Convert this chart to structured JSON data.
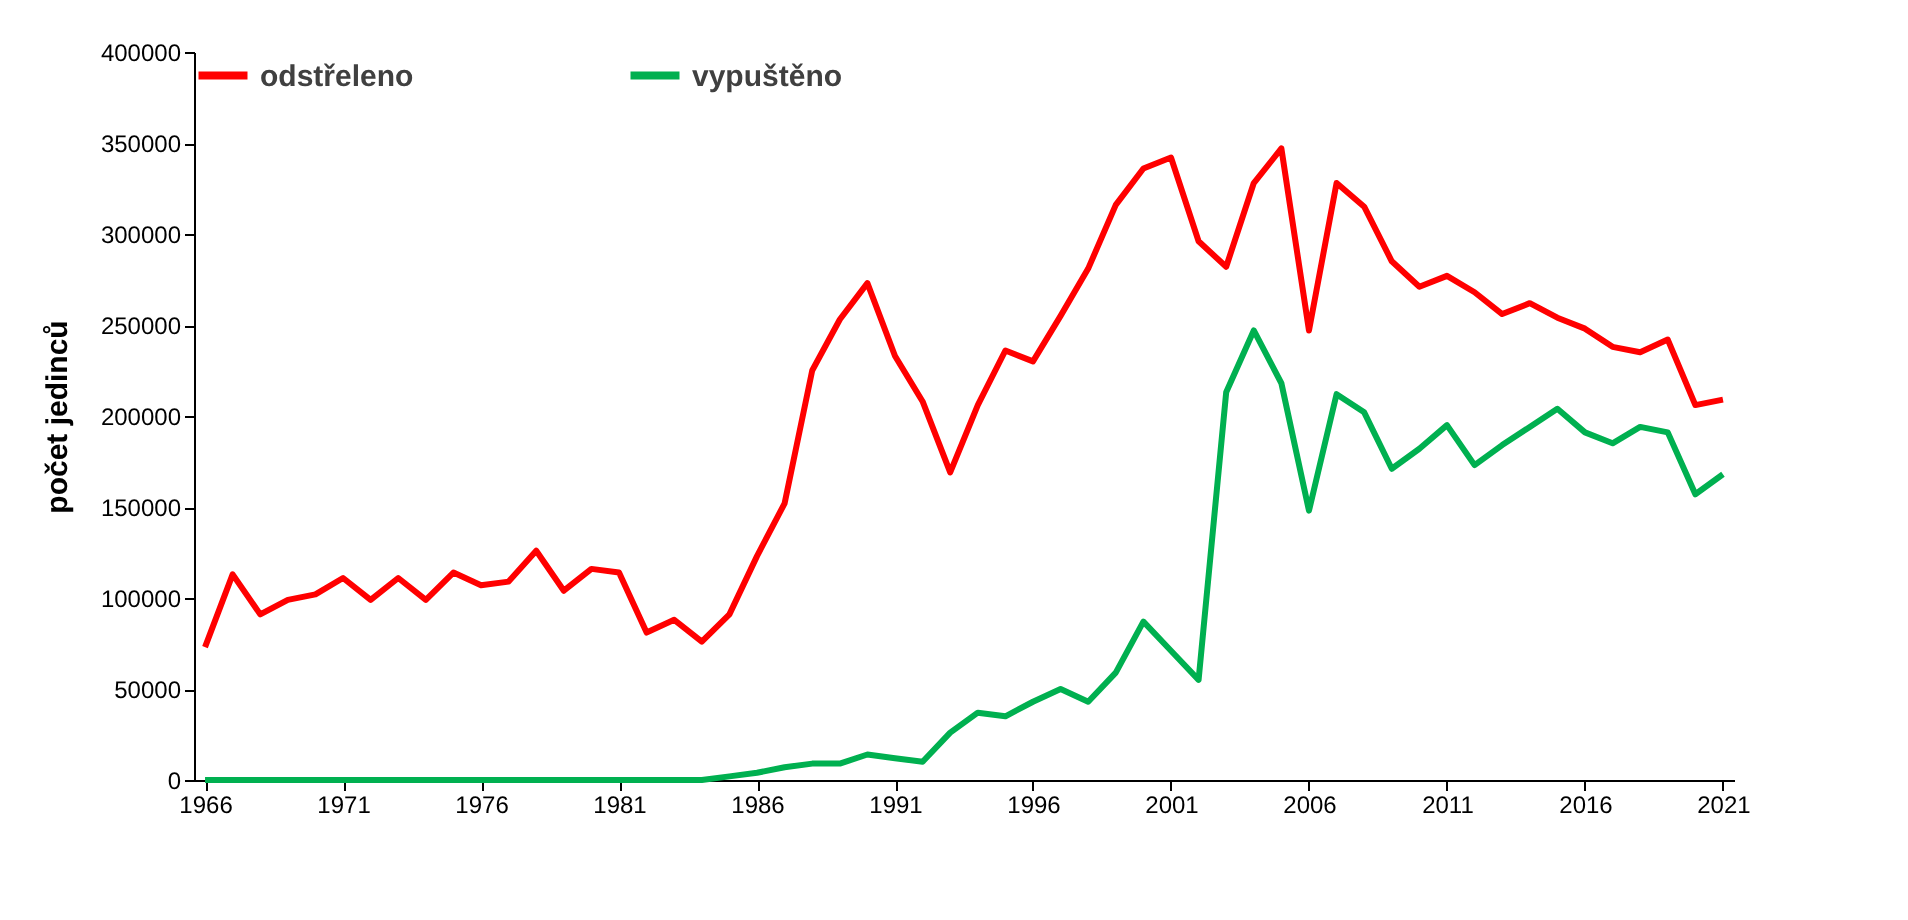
{
  "chart_data": {
    "type": "line",
    "ylabel": "počet jedinců",
    "x": [
      1966,
      1967,
      1968,
      1969,
      1970,
      1971,
      1972,
      1973,
      1974,
      1975,
      1976,
      1977,
      1978,
      1979,
      1980,
      1981,
      1982,
      1983,
      1984,
      1985,
      1986,
      1987,
      1988,
      1989,
      1990,
      1991,
      1992,
      1993,
      1994,
      1995,
      1996,
      1997,
      1998,
      1999,
      2000,
      2001,
      2002,
      2003,
      2004,
      2005,
      2006,
      2007,
      2008,
      2009,
      2010,
      2011,
      2012,
      2013,
      2014,
      2015,
      2016,
      2017,
      2018,
      2019,
      2020,
      2021
    ],
    "series": [
      {
        "name": "odstřeleno",
        "color": "#ff0000",
        "values": [
          73000,
          113000,
          91000,
          99000,
          102000,
          111000,
          99000,
          111000,
          99000,
          114000,
          107000,
          109000,
          126000,
          104000,
          116000,
          114000,
          81000,
          88000,
          76000,
          91000,
          123000,
          152000,
          225000,
          253000,
          273000,
          233000,
          208000,
          169000,
          206000,
          236000,
          230000,
          255000,
          281000,
          316000,
          336000,
          342000,
          296000,
          282000,
          328000,
          347000,
          247000,
          328000,
          315000,
          285000,
          271000,
          277000,
          268000,
          256000,
          262000,
          254000,
          248000,
          238000,
          235000,
          242000,
          206000,
          209000
        ]
      },
      {
        "name": "vypuštěno",
        "color": "#00b050",
        "values": [
          0,
          0,
          0,
          0,
          0,
          0,
          0,
          0,
          0,
          0,
          0,
          0,
          0,
          0,
          0,
          0,
          0,
          0,
          0,
          2000,
          4000,
          7000,
          9000,
          9000,
          14000,
          12000,
          10000,
          26000,
          37000,
          35000,
          43000,
          50000,
          43000,
          59000,
          87000,
          71000,
          55000,
          213000,
          247000,
          218000,
          148000,
          212000,
          202000,
          171000,
          182000,
          195000,
          173000,
          184000,
          194000,
          204000,
          191000,
          185000,
          194000,
          191000,
          157000,
          168000
        ]
      }
    ],
    "xlim": [
      1965.6,
      2021.4
    ],
    "xticks": [
      1966,
      1971,
      1976,
      1981,
      1986,
      1991,
      1996,
      2001,
      2006,
      2011,
      2016,
      2021
    ],
    "ylim": [
      0,
      400000
    ],
    "yticks": [
      0,
      50000,
      100000,
      150000,
      200000,
      250000,
      300000,
      350000,
      400000
    ],
    "grid": false,
    "legend": "top",
    "marker": "none",
    "line_style": "solid"
  }
}
